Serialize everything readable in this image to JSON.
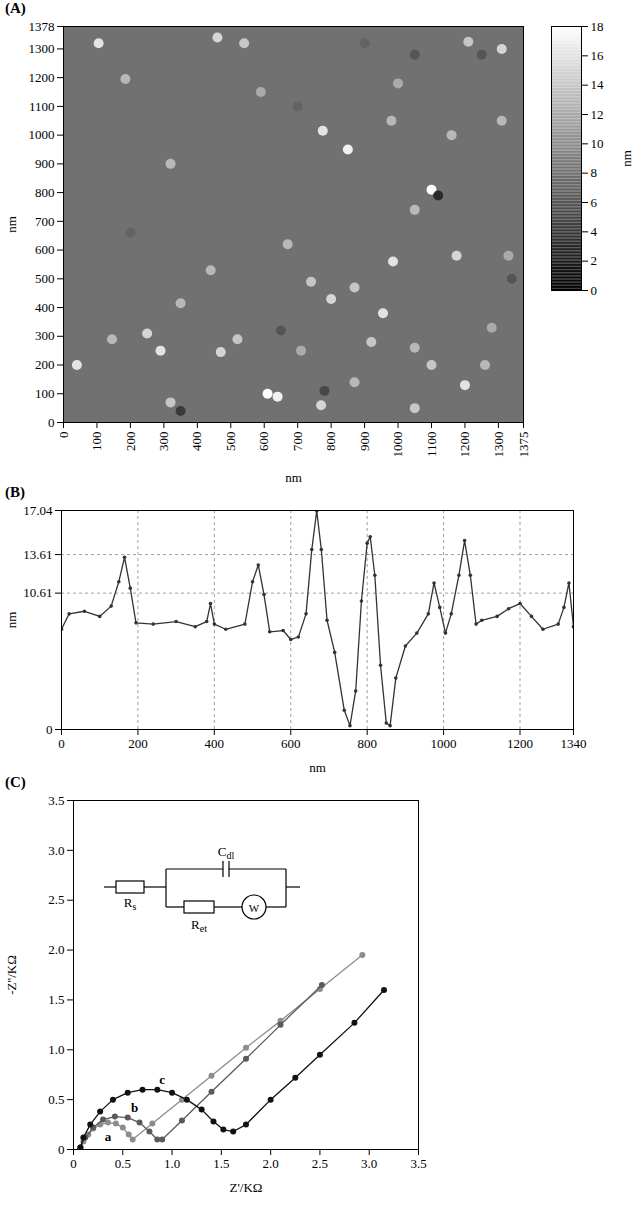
{
  "chart_data": [
    {
      "panel": "(A)",
      "type": "scatter",
      "x_label": "nm",
      "y_label": "nm",
      "xlim": [
        0,
        1375
      ],
      "xticks": [
        0,
        100,
        200,
        300,
        400,
        500,
        600,
        700,
        800,
        900,
        1000,
        1100,
        1200,
        1300,
        1375
      ],
      "ylim": [
        0,
        1378
      ],
      "yticks": [
        0,
        100,
        200,
        300,
        400,
        500,
        600,
        700,
        800,
        900,
        1000,
        1100,
        1200,
        1300,
        1378
      ],
      "base_height": 8,
      "x": [
        105,
        460,
        540,
        1210,
        1310,
        185,
        590,
        775,
        850,
        1100,
        1160,
        320,
        980,
        1000,
        1310,
        1175,
        985,
        870,
        955,
        800,
        740,
        440,
        350,
        250,
        145,
        520,
        470,
        290,
        710,
        920,
        1050,
        1280,
        1200,
        1100,
        870,
        610,
        640,
        770,
        40,
        320,
        1050,
        1260,
        1330,
        670,
        1050,
        350,
        780,
        1120,
        1050,
        700,
        1250,
        1340,
        900,
        650,
        200
      ],
      "y": [
        1320,
        1340,
        1320,
        1325,
        1300,
        1195,
        1150,
        1015,
        950,
        810,
        1000,
        900,
        1050,
        1180,
        1050,
        580,
        560,
        470,
        380,
        430,
        490,
        530,
        415,
        310,
        290,
        290,
        245,
        250,
        250,
        280,
        260,
        330,
        130,
        200,
        140,
        100,
        90,
        60,
        200,
        70,
        50,
        200,
        580,
        620,
        740,
        40,
        110,
        790,
        1280,
        1100,
        1280,
        500,
        1320,
        320,
        660
      ],
      "heights": [
        16,
        15,
        14,
        14,
        15,
        13,
        12,
        16,
        17,
        18,
        13,
        13,
        13,
        12,
        13,
        15,
        16,
        14,
        16,
        15,
        14,
        13,
        13,
        15,
        13,
        14,
        15,
        16,
        12,
        14,
        13,
        12,
        16,
        14,
        13,
        18,
        17,
        15,
        16,
        14,
        14,
        13,
        12,
        13,
        13,
        4,
        5,
        3,
        6,
        7,
        6,
        6,
        7,
        6,
        7
      ],
      "colorbar": {
        "range": [
          0,
          18
        ],
        "ticks": [
          0,
          2,
          4,
          6,
          8,
          10,
          12,
          14,
          16,
          18
        ],
        "label": "nm"
      }
    },
    {
      "panel": "(B)",
      "type": "line",
      "marker": "circle",
      "grid": true,
      "x_label": "nm",
      "y_label": "nm",
      "xlim": [
        0,
        1340
      ],
      "xticks": [
        0,
        200,
        400,
        600,
        800,
        1000,
        1200,
        1340
      ],
      "ylim": [
        0,
        17.04
      ],
      "yticks": [
        0,
        10.61,
        13.61,
        17.04
      ],
      "x": [
        0,
        20,
        60,
        100,
        130,
        150,
        165,
        180,
        195,
        240,
        300,
        350,
        380,
        390,
        400,
        430,
        480,
        500,
        515,
        530,
        545,
        580,
        600,
        620,
        640,
        655,
        668,
        680,
        695,
        715,
        740,
        755,
        770,
        785,
        800,
        808,
        820,
        835,
        850,
        860,
        875,
        900,
        930,
        960,
        975,
        990,
        1005,
        1020,
        1040,
        1055,
        1070,
        1085,
        1100,
        1140,
        1170,
        1200,
        1230,
        1260,
        1300,
        1315,
        1328,
        1340
      ],
      "values": [
        7.8,
        9.0,
        9.2,
        8.8,
        9.6,
        11.5,
        13.4,
        11,
        8.3,
        8.2,
        8.4,
        8.0,
        8.4,
        9.8,
        8.2,
        7.8,
        8.2,
        11.5,
        12.8,
        10.5,
        7.6,
        7.7,
        7.0,
        7.2,
        9,
        14,
        17.0,
        14,
        8.5,
        6,
        1.5,
        0.3,
        3,
        10,
        14.5,
        15.0,
        12,
        5,
        0.5,
        0.3,
        4,
        6.5,
        7.5,
        9,
        11.4,
        9.5,
        7.5,
        9,
        12,
        14.7,
        12,
        8.2,
        8.5,
        8.8,
        9.4,
        9.8,
        8.8,
        7.8,
        8.2,
        9.5,
        11.4,
        8.0
      ],
      "color": "#333333"
    },
    {
      "panel": "(C)",
      "type": "line",
      "marker": "circle",
      "x_label": "Z'/KΩ",
      "y_label": "-Z''/KΩ",
      "xlim": [
        0,
        3.5
      ],
      "xticks": [
        0,
        0.5,
        {
          "value": 1,
          "label": "1.0"
        },
        1.5,
        {
          "value": 2,
          "label": "2.0"
        },
        2.5,
        {
          "value": 3,
          "label": "3.0"
        },
        3.5
      ],
      "ylim": [
        0,
        3.5
      ],
      "yticks": [
        0,
        0.5,
        {
          "value": 1,
          "label": "1.0"
        },
        1.5,
        {
          "value": 2,
          "label": "2.0"
        },
        2.5,
        {
          "value": 3,
          "label": "3.0"
        },
        3.5
      ],
      "series": [
        {
          "name": "a",
          "color": "#8c8c8c",
          "label_at": [
            0.35,
            0.13
          ],
          "x": [
            0.07,
            0.1,
            0.15,
            0.2,
            0.27,
            0.35,
            0.43,
            0.5,
            0.56,
            0.6,
            0.8,
            1.1,
            1.4,
            1.75,
            2.1,
            2.5,
            2.93
          ],
          "values": [
            0.02,
            0.08,
            0.15,
            0.21,
            0.25,
            0.27,
            0.26,
            0.22,
            0.15,
            0.1,
            0.26,
            0.5,
            0.74,
            1.02,
            1.29,
            1.61,
            1.95
          ]
        },
        {
          "name": "b",
          "color": "#5a5a5a",
          "label_at": [
            0.62,
            0.42
          ],
          "x": [
            0.07,
            0.12,
            0.2,
            0.3,
            0.42,
            0.55,
            0.67,
            0.77,
            0.85,
            0.9,
            1.1,
            1.4,
            1.75,
            2.1,
            2.52
          ],
          "values": [
            0.02,
            0.12,
            0.22,
            0.3,
            0.33,
            0.32,
            0.27,
            0.18,
            0.1,
            0.1,
            0.29,
            0.58,
            0.91,
            1.25,
            1.65
          ]
        },
        {
          "name": "c",
          "color": "#111111",
          "label_at": [
            0.9,
            0.7
          ],
          "x": [
            0.07,
            0.1,
            0.17,
            0.27,
            0.4,
            0.55,
            0.7,
            0.85,
            1.0,
            1.15,
            1.3,
            1.42,
            1.52,
            1.62,
            1.75,
            2.0,
            2.25,
            2.5,
            2.85,
            3.15
          ],
          "values": [
            0.02,
            0.12,
            0.25,
            0.38,
            0.5,
            0.57,
            0.6,
            0.6,
            0.57,
            0.5,
            0.4,
            0.28,
            0.2,
            0.18,
            0.25,
            0.5,
            0.72,
            0.95,
            1.27,
            1.6
          ]
        }
      ],
      "circuit": {
        "capacitor": "Cdl",
        "series_resistor": "Rs",
        "transfer_resistor": "Ret",
        "warburg": "W"
      }
    }
  ]
}
